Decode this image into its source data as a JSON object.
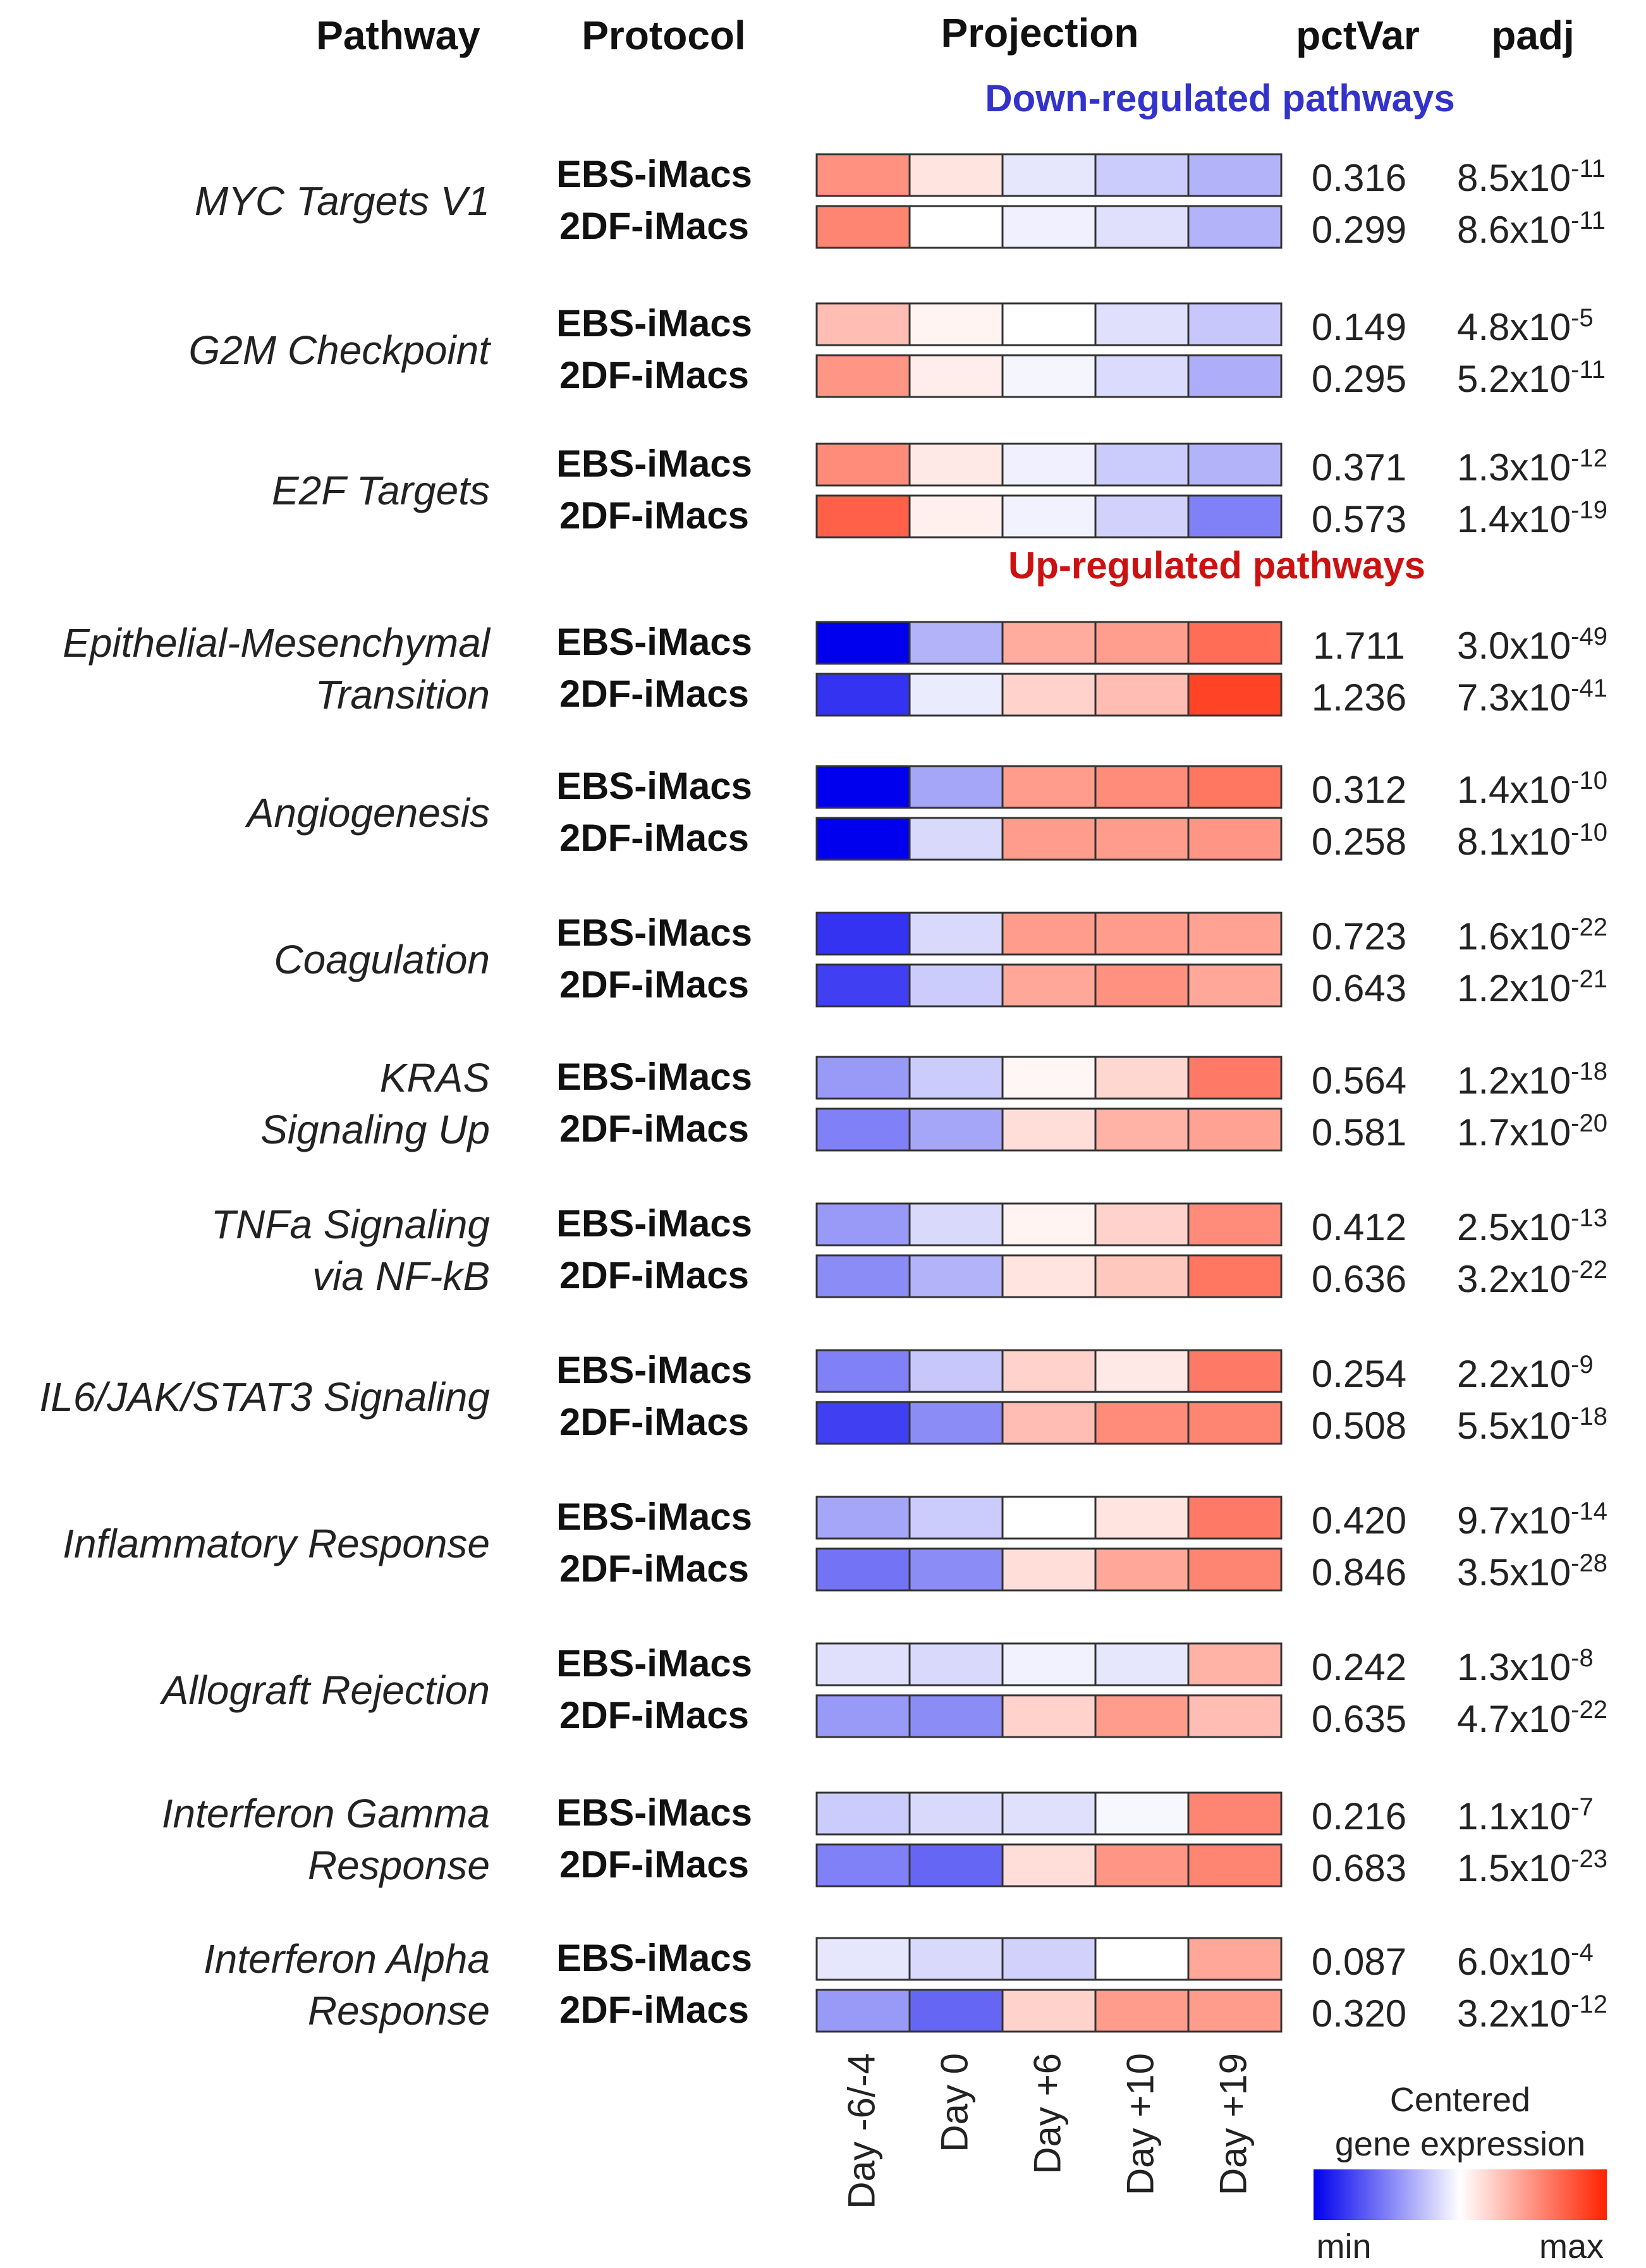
{
  "chart_data": {
    "type": "heatmap",
    "headers": {
      "pathway": "Pathway",
      "protocol": "Protocol",
      "projection": "Projection",
      "pctvar": "pctVar",
      "padj": "padj"
    },
    "columns": [
      "Day -6/-4",
      "Day 0",
      "Day +6",
      "Day +10",
      "Day +19"
    ],
    "legend": {
      "title_line1": "Centered",
      "title_line2": "gene expression",
      "min_label": "min",
      "max_label": "max",
      "range": [
        -1,
        1
      ],
      "colors": {
        "min": "#0000ee",
        "mid": "#ffffff",
        "max": "#ff2200"
      }
    },
    "groups": [
      {
        "section": "Down-regulated pathways",
        "section_color": "#3333cc",
        "pathways": [
          {
            "name": [
              "MYC Targets V1"
            ],
            "rows": [
              {
                "protocol": "EBS-iMacs",
                "values": [
                  0.5,
                  0.12,
                  -0.1,
                  -0.2,
                  -0.3
                ],
                "pctVar": "0.316",
                "padj_mantissa": "8.5x10",
                "padj_exp": "-11"
              },
              {
                "protocol": "2DF-iMacs",
                "values": [
                  0.55,
                  0.0,
                  -0.06,
                  -0.12,
                  -0.3
                ],
                "pctVar": "0.299",
                "padj_mantissa": "8.6x10",
                "padj_exp": "-11"
              }
            ]
          },
          {
            "name": [
              "G2M Checkpoint"
            ],
            "rows": [
              {
                "protocol": "EBS-iMacs",
                "values": [
                  0.3,
                  0.05,
                  0.0,
                  -0.12,
                  -0.22
                ],
                "pctVar": "0.149",
                "padj_mantissa": "4.8x10",
                "padj_exp": "-5"
              },
              {
                "protocol": "2DF-iMacs",
                "values": [
                  0.48,
                  0.08,
                  -0.04,
                  -0.14,
                  -0.32
                ],
                "pctVar": "0.295",
                "padj_mantissa": "5.2x10",
                "padj_exp": "-11"
              }
            ]
          },
          {
            "name": [
              "E2F Targets"
            ],
            "rows": [
              {
                "protocol": "EBS-iMacs",
                "values": [
                  0.52,
                  0.1,
                  -0.06,
                  -0.2,
                  -0.3
                ],
                "pctVar": "0.371",
                "padj_mantissa": "1.3x10",
                "padj_exp": "-12"
              },
              {
                "protocol": "2DF-iMacs",
                "values": [
                  0.72,
                  0.07,
                  -0.05,
                  -0.18,
                  -0.5
                ],
                "pctVar": "0.573",
                "padj_mantissa": "1.4x10",
                "padj_exp": "-19"
              }
            ]
          }
        ]
      },
      {
        "section": "Up-regulated pathways",
        "section_color": "#cc1111",
        "pathways": [
          {
            "name": [
              "Epithelial-Mesenchymal",
              "Transition"
            ],
            "rows": [
              {
                "protocol": "EBS-iMacs",
                "values": [
                  -1.0,
                  -0.3,
                  0.38,
                  0.44,
                  0.66
                ],
                "pctVar": "1.711",
                "padj_mantissa": "3.0x10",
                "padj_exp": "-49"
              },
              {
                "protocol": "2DF-iMacs",
                "values": [
                  -0.8,
                  -0.08,
                  0.2,
                  0.3,
                  0.85
                ],
                "pctVar": "1.236",
                "padj_mantissa": "7.3x10",
                "padj_exp": "-41"
              }
            ]
          },
          {
            "name": [
              "Angiogenesis"
            ],
            "rows": [
              {
                "protocol": "EBS-iMacs",
                "values": [
                  -1.0,
                  -0.35,
                  0.45,
                  0.52,
                  0.62
                ],
                "pctVar": "0.312",
                "padj_mantissa": "1.4x10",
                "padj_exp": "-10"
              },
              {
                "protocol": "2DF-iMacs",
                "values": [
                  -1.0,
                  -0.15,
                  0.45,
                  0.45,
                  0.48
                ],
                "pctVar": "0.258",
                "padj_mantissa": "8.1x10",
                "padj_exp": "-10"
              }
            ]
          },
          {
            "name": [
              "Coagulation"
            ],
            "rows": [
              {
                "protocol": "EBS-iMacs",
                "values": [
                  -0.8,
                  -0.15,
                  0.45,
                  0.45,
                  0.42
                ],
                "pctVar": "0.723",
                "padj_mantissa": "1.6x10",
                "padj_exp": "-22"
              },
              {
                "protocol": "2DF-iMacs",
                "values": [
                  -0.75,
                  -0.2,
                  0.4,
                  0.5,
                  0.4
                ],
                "pctVar": "0.643",
                "padj_mantissa": "1.2x10",
                "padj_exp": "-21"
              }
            ]
          },
          {
            "name": [
              "KRAS",
              "Signaling Up"
            ],
            "rows": [
              {
                "protocol": "EBS-iMacs",
                "values": [
                  -0.4,
                  -0.2,
                  0.04,
                  0.18,
                  0.6
                ],
                "pctVar": "0.564",
                "padj_mantissa": "1.2x10",
                "padj_exp": "-18"
              },
              {
                "protocol": "2DF-iMacs",
                "values": [
                  -0.5,
                  -0.35,
                  0.15,
                  0.35,
                  0.42
                ],
                "pctVar": "0.581",
                "padj_mantissa": "1.7x10",
                "padj_exp": "-20"
              }
            ]
          },
          {
            "name": [
              "TNFa Signaling",
              "via NF-kB"
            ],
            "rows": [
              {
                "protocol": "EBS-iMacs",
                "values": [
                  -0.4,
                  -0.15,
                  0.05,
                  0.2,
                  0.52
                ],
                "pctVar": "0.412",
                "padj_mantissa": "2.5x10",
                "padj_exp": "-13"
              },
              {
                "protocol": "2DF-iMacs",
                "values": [
                  -0.45,
                  -0.3,
                  0.12,
                  0.25,
                  0.62
                ],
                "pctVar": "0.636",
                "padj_mantissa": "3.2x10",
                "padj_exp": "-22"
              }
            ]
          },
          {
            "name": [
              "IL6/JAK/STAT3 Signaling"
            ],
            "rows": [
              {
                "protocol": "EBS-iMacs",
                "values": [
                  -0.5,
                  -0.22,
                  0.2,
                  0.1,
                  0.6
                ],
                "pctVar": "0.254",
                "padj_mantissa": "2.2x10",
                "padj_exp": "-9"
              },
              {
                "protocol": "2DF-iMacs",
                "values": [
                  -0.75,
                  -0.45,
                  0.3,
                  0.52,
                  0.55
                ],
                "pctVar": "0.508",
                "padj_mantissa": "5.5x10",
                "padj_exp": "-18"
              }
            ]
          },
          {
            "name": [
              "Inflammatory Response"
            ],
            "rows": [
              {
                "protocol": "EBS-iMacs",
                "values": [
                  -0.35,
                  -0.2,
                  0.0,
                  0.12,
                  0.6
                ],
                "pctVar": "0.420",
                "padj_mantissa": "9.7x10",
                "padj_exp": "-14"
              },
              {
                "protocol": "2DF-iMacs",
                "values": [
                  -0.55,
                  -0.45,
                  0.15,
                  0.4,
                  0.55
                ],
                "pctVar": "0.846",
                "padj_mantissa": "3.5x10",
                "padj_exp": "-28"
              }
            ]
          },
          {
            "name": [
              "Allograft Rejection"
            ],
            "rows": [
              {
                "protocol": "EBS-iMacs",
                "values": [
                  -0.12,
                  -0.15,
                  -0.05,
                  -0.1,
                  0.35
                ],
                "pctVar": "0.242",
                "padj_mantissa": "1.3x10",
                "padj_exp": "-8"
              },
              {
                "protocol": "2DF-iMacs",
                "values": [
                  -0.4,
                  -0.45,
                  0.2,
                  0.45,
                  0.3
                ],
                "pctVar": "0.635",
                "padj_mantissa": "4.7x10",
                "padj_exp": "-22"
              }
            ]
          },
          {
            "name": [
              "Interferon Gamma",
              "Response"
            ],
            "rows": [
              {
                "protocol": "EBS-iMacs",
                "values": [
                  -0.2,
                  -0.15,
                  -0.12,
                  -0.03,
                  0.55
                ],
                "pctVar": "0.216",
                "padj_mantissa": "1.1x10",
                "padj_exp": "-7"
              },
              {
                "protocol": "2DF-iMacs",
                "values": [
                  -0.5,
                  -0.6,
                  0.15,
                  0.48,
                  0.55
                ],
                "pctVar": "0.683",
                "padj_mantissa": "1.5x10",
                "padj_exp": "-23"
              }
            ]
          },
          {
            "name": [
              "Interferon Alpha",
              "Response"
            ],
            "rows": [
              {
                "protocol": "EBS-iMacs",
                "values": [
                  -0.1,
                  -0.15,
                  -0.18,
                  0.0,
                  0.4
                ],
                "pctVar": "0.087",
                "padj_mantissa": "6.0x10",
                "padj_exp": "-4"
              },
              {
                "protocol": "2DF-iMacs",
                "values": [
                  -0.4,
                  -0.6,
                  0.2,
                  0.45,
                  0.45
                ],
                "pctVar": "0.320",
                "padj_mantissa": "3.2x10",
                "padj_exp": "-12"
              }
            ]
          }
        ]
      }
    ]
  }
}
